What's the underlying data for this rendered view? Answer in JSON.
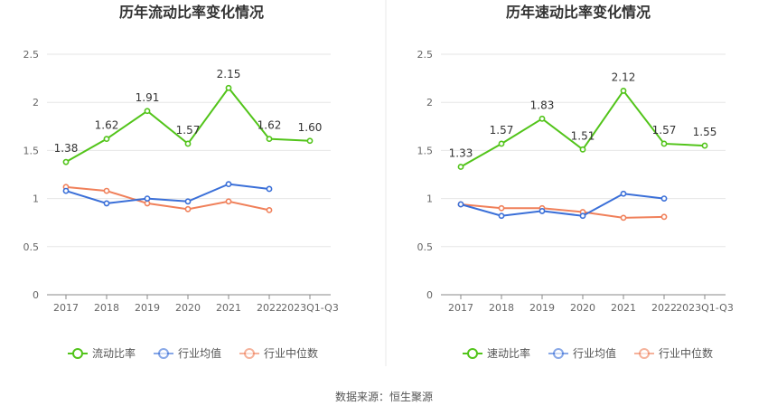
{
  "footer": {
    "source": "数据来源：恒生聚源"
  },
  "chart_data": [
    {
      "type": "line",
      "title": "历年流动比率变化情况",
      "categories": [
        "2017",
        "2018",
        "2019",
        "2020",
        "2021",
        "2022",
        "2023Q1-Q3"
      ],
      "ylim": [
        0,
        2.5
      ],
      "yticks": [
        "0",
        "0.5",
        "1",
        "1.5",
        "2",
        "2.5"
      ],
      "ytick_values": [
        0,
        0.5,
        1,
        1.5,
        2,
        2.5
      ],
      "grid": true,
      "legend_position": "bottom",
      "series": [
        {
          "name": "流动比率",
          "color": "#52c41a",
          "labeled": true,
          "labels": [
            "1.38",
            "1.62",
            "1.91",
            "1.57",
            "2.15",
            "1.62",
            "1.60"
          ],
          "values": [
            1.38,
            1.62,
            1.91,
            1.57,
            2.15,
            1.62,
            1.6
          ]
        },
        {
          "name": "行业均值",
          "color": "#3a6fd8",
          "labeled": false,
          "values": [
            1.08,
            0.95,
            1.0,
            0.97,
            1.15,
            1.1,
            null
          ]
        },
        {
          "name": "行业中位数",
          "color": "#f0805a",
          "labeled": false,
          "values": [
            1.12,
            1.08,
            0.95,
            0.89,
            0.97,
            0.88,
            null
          ]
        }
      ]
    },
    {
      "type": "line",
      "title": "历年速动比率变化情况",
      "categories": [
        "2017",
        "2018",
        "2019",
        "2020",
        "2021",
        "2022",
        "2023Q1-Q3"
      ],
      "ylim": [
        0,
        2.5
      ],
      "yticks": [
        "0",
        "0.5",
        "1",
        "1.5",
        "2",
        "2.5"
      ],
      "ytick_values": [
        0,
        0.5,
        1,
        1.5,
        2,
        2.5
      ],
      "grid": true,
      "legend_position": "bottom",
      "series": [
        {
          "name": "速动比率",
          "color": "#52c41a",
          "labeled": true,
          "labels": [
            "1.33",
            "1.57",
            "1.83",
            "1.51",
            "2.12",
            "1.57",
            "1.55"
          ],
          "values": [
            1.33,
            1.57,
            1.83,
            1.51,
            2.12,
            1.57,
            1.55
          ]
        },
        {
          "name": "行业均值",
          "color": "#3a6fd8",
          "labeled": false,
          "values": [
            0.94,
            0.82,
            0.87,
            0.82,
            1.05,
            1.0,
            null
          ]
        },
        {
          "name": "行业中位数",
          "color": "#f0805a",
          "labeled": false,
          "values": [
            0.94,
            0.9,
            0.9,
            0.86,
            0.8,
            0.81,
            null
          ]
        }
      ]
    }
  ]
}
